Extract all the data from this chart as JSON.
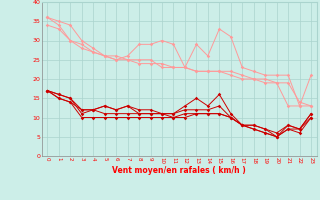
{
  "xlabel": "Vent moyen/en rafales ( km/h )",
  "background_color": "#cceee8",
  "grid_color": "#aad4ce",
  "x": [
    0,
    1,
    2,
    3,
    4,
    5,
    6,
    7,
    8,
    9,
    10,
    11,
    12,
    13,
    14,
    15,
    16,
    17,
    18,
    19,
    20,
    21,
    22,
    23
  ],
  "line1": [
    36,
    35,
    34,
    30,
    28,
    26,
    25,
    26,
    29,
    29,
    30,
    29,
    23,
    29,
    26,
    33,
    31,
    23,
    22,
    21,
    21,
    21,
    13,
    21
  ],
  "line2": [
    34,
    33,
    30,
    28,
    27,
    26,
    25,
    25,
    24,
    24,
    24,
    23,
    23,
    22,
    22,
    22,
    21,
    20,
    20,
    19,
    19,
    13,
    13,
    13
  ],
  "line3": [
    36,
    34,
    30,
    29,
    27,
    26,
    26,
    25,
    25,
    25,
    23,
    23,
    23,
    22,
    22,
    22,
    22,
    21,
    20,
    20,
    19,
    19,
    14,
    13
  ],
  "line4": [
    17,
    16,
    15,
    12,
    12,
    13,
    12,
    13,
    12,
    12,
    11,
    11,
    13,
    15,
    13,
    16,
    11,
    8,
    8,
    7,
    5,
    8,
    7,
    11
  ],
  "line5": [
    17,
    15,
    14,
    12,
    12,
    13,
    12,
    13,
    11,
    11,
    11,
    11,
    12,
    12,
    12,
    13,
    10,
    8,
    8,
    7,
    6,
    8,
    7,
    11
  ],
  "line6": [
    17,
    16,
    15,
    11,
    12,
    11,
    11,
    11,
    11,
    11,
    11,
    10,
    11,
    11,
    11,
    11,
    10,
    8,
    7,
    6,
    5,
    7,
    7,
    10
  ],
  "line7": [
    17,
    15,
    14,
    10,
    10,
    10,
    10,
    10,
    10,
    10,
    10,
    10,
    10,
    11,
    11,
    11,
    10,
    8,
    7,
    6,
    5,
    7,
    6,
    10
  ],
  "color_light": "#ff9999",
  "color_dark": "#cc0000",
  "xlim": [
    -0.5,
    23.5
  ],
  "ylim": [
    0,
    40
  ],
  "yticks": [
    0,
    5,
    10,
    15,
    20,
    25,
    30,
    35,
    40
  ],
  "xticks": [
    0,
    1,
    2,
    3,
    4,
    5,
    6,
    7,
    8,
    9,
    10,
    11,
    12,
    13,
    14,
    15,
    16,
    17,
    18,
    19,
    20,
    21,
    22,
    23
  ]
}
